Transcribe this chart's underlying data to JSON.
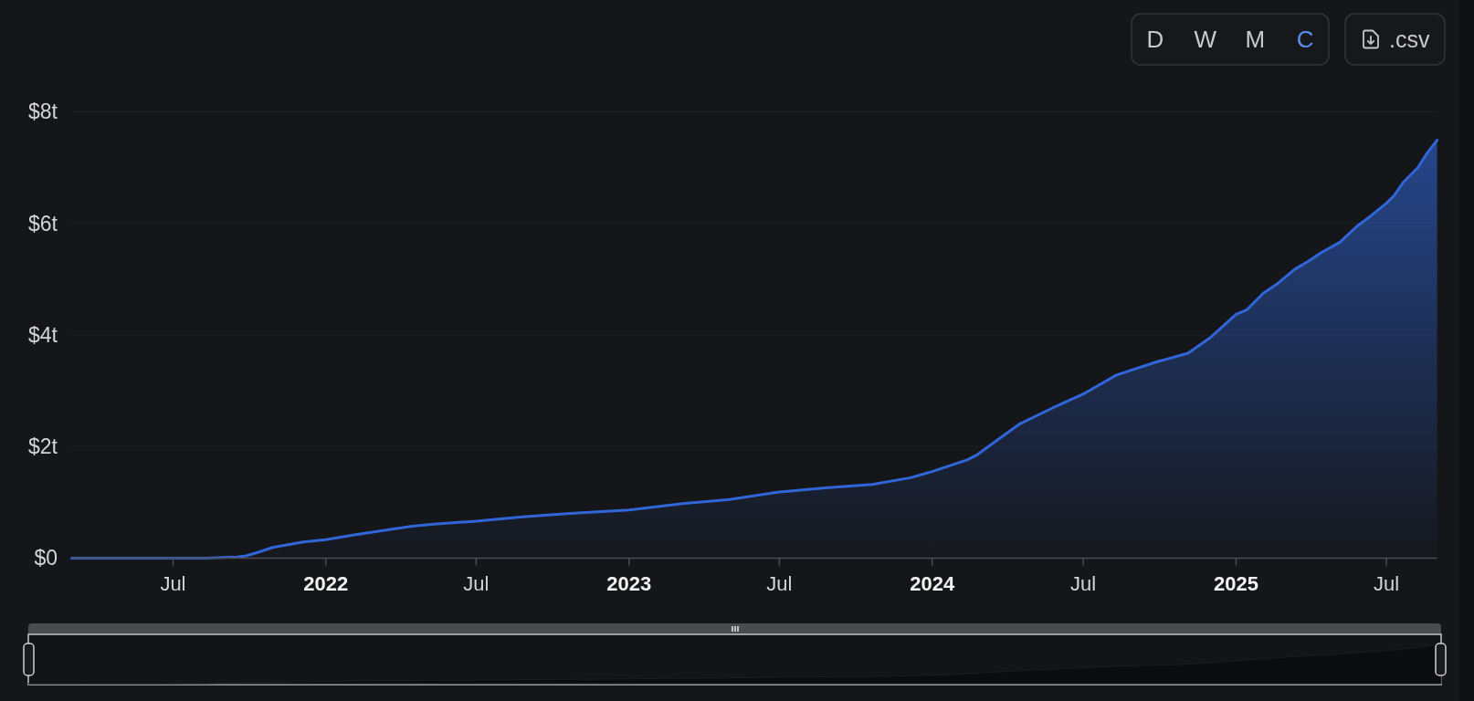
{
  "chart_data": {
    "type": "area",
    "color": "#3166d8",
    "x": [
      "2021-03-01",
      "2021-05-01",
      "2021-07-01",
      "2021-08-10",
      "2021-09-16",
      "2021-09-27",
      "2021-10-11",
      "2021-10-29",
      "2021-12-05",
      "2022-01-01",
      "2022-02-06",
      "2022-03-18",
      "2022-04-15",
      "2022-05-14",
      "2022-07-01",
      "2022-08-26",
      "2022-10-22",
      "2023-01-01",
      "2023-03-09",
      "2023-05-02",
      "2023-06-29",
      "2023-08-25",
      "2023-10-21",
      "2023-12-06",
      "2024-01-01",
      "2024-02-12",
      "2024-02-23",
      "2024-03-20",
      "2024-04-15",
      "2024-05-25",
      "2024-07-01",
      "2024-08-10",
      "2024-09-28",
      "2024-11-04",
      "2024-11-30",
      "2025-01-01",
      "2025-01-14",
      "2025-02-03",
      "2025-02-20",
      "2025-03-12",
      "2025-03-29",
      "2025-04-13",
      "2025-05-06",
      "2025-05-26",
      "2025-06-12",
      "2025-07-01",
      "2025-07-10",
      "2025-07-21",
      "2025-08-08",
      "2025-08-19",
      "2025-08-31"
    ],
    "values": [
      0,
      0,
      0,
      0,
      0.02,
      0.04,
      0.1,
      0.19,
      0.29,
      0.33,
      0.42,
      0.51,
      0.57,
      0.61,
      0.66,
      0.74,
      0.8,
      0.86,
      0.98,
      1.05,
      1.18,
      1.26,
      1.32,
      1.44,
      1.55,
      1.76,
      1.84,
      2.12,
      2.4,
      2.69,
      2.94,
      3.28,
      3.52,
      3.67,
      3.94,
      4.37,
      4.45,
      4.75,
      4.92,
      5.17,
      5.32,
      5.47,
      5.66,
      5.94,
      6.13,
      6.36,
      6.49,
      6.73,
      7.0,
      7.26,
      7.49
    ],
    "xlim": [
      "2021-03-01",
      "2025-08-31"
    ],
    "xticks": [
      {
        "value": "2021-07-01",
        "label": "Jul"
      },
      {
        "value": "2022-01-01",
        "label": "2022"
      },
      {
        "value": "2022-07-01",
        "label": "Jul"
      },
      {
        "value": "2023-01-01",
        "label": "2023"
      },
      {
        "value": "2023-07-01",
        "label": "Jul"
      },
      {
        "value": "2024-01-01",
        "label": "2024"
      },
      {
        "value": "2024-07-01",
        "label": "Jul"
      },
      {
        "value": "2025-01-01",
        "label": "2025"
      },
      {
        "value": "2025-07-01",
        "label": "Jul"
      }
    ],
    "ylim": [
      0,
      8
    ],
    "yticks": [
      {
        "value": 0,
        "label": "$0"
      },
      {
        "value": 2,
        "label": "$2t"
      },
      {
        "value": 4,
        "label": "$4t"
      },
      {
        "value": 6,
        "label": "$6t"
      },
      {
        "value": 8,
        "label": "$8t"
      }
    ],
    "grid": "y",
    "annotations": [
      "D",
      "W",
      "M",
      "C",
      ".csv"
    ]
  }
}
